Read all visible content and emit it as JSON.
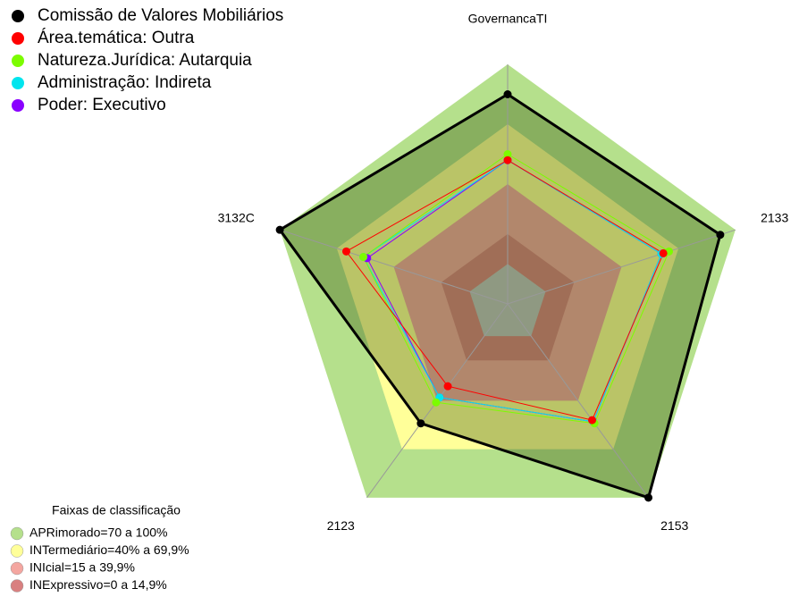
{
  "chart_data": {
    "type": "radar",
    "categories": [
      "GovernancaTI",
      "2133",
      "2153",
      "2123",
      "3132C"
    ],
    "ylim": [
      -20,
      100
    ],
    "center_color": "#c0c0c0",
    "series": [
      {
        "name": "Comissão de Valores Mobiliários",
        "color": "#000000",
        "values": [
          85,
          92,
          100,
          54,
          100
        ]
      },
      {
        "name": "Área.temática: Outra",
        "color": "#ff0000",
        "values": [
          52,
          62,
          52,
          31,
          65
        ]
      },
      {
        "name": "Natureza.Jurídica: Autarquia",
        "color": "#7cfc00",
        "values": [
          55,
          65,
          54,
          41,
          56
        ]
      },
      {
        "name": "Administração: Indireta",
        "color": "#00e5ee",
        "values": [
          52,
          61,
          53,
          38,
          56
        ]
      },
      {
        "name": "Poder: Executivo",
        "color": "#8a00ff",
        "values": [
          52,
          61,
          53,
          38,
          54
        ]
      }
    ],
    "bands_title": "Faixas de classificação",
    "bands": [
      {
        "name": "APRimorado=70 a 100%",
        "color": "#b5e08c",
        "from": 70,
        "to": 100
      },
      {
        "name": "INTermediário=40% a 69,9%",
        "color": "#ffff99",
        "from": 40,
        "to": 70
      },
      {
        "name": "INIcial=15 a 39,9%",
        "color": "#f4a6a0",
        "from": 15,
        "to": 40
      },
      {
        "name": "INExpressivo=0 a 14,9%",
        "color": "#d98080",
        "from": 0,
        "to": 15
      }
    ]
  }
}
